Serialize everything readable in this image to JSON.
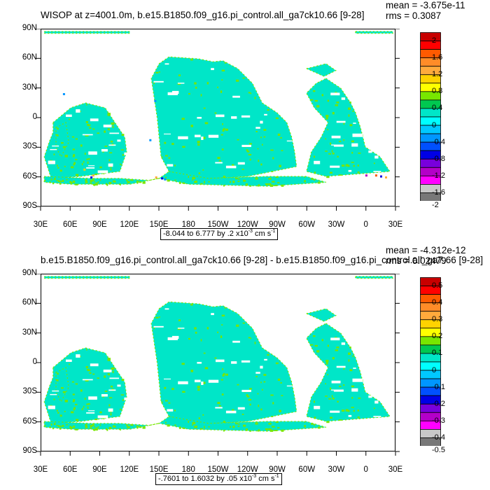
{
  "chart_data": [
    {
      "type": "heatmap",
      "title": "WISOP at z=4001.0m, b.e15.B1850.f09_g16.pi_control.all_ga7ck10.66 [9-28]",
      "stats": {
        "mean": "mean = -3.675e-11",
        "rms": "rms = 0.3087"
      },
      "x_ticks": [
        "30E",
        "60E",
        "90E",
        "120E",
        "150E",
        "180",
        "150W",
        "120W",
        "90W",
        "60W",
        "30W",
        "0",
        "30E"
      ],
      "y_ticks": [
        "90N",
        "60N",
        "30N",
        "0",
        "30S",
        "60S",
        "90S"
      ],
      "colorbar": {
        "labels": [
          "2",
          "1.6",
          "1.2",
          "0.8",
          "0.4",
          "0",
          "-0.4",
          "-0.8",
          "-1.2",
          "-1.6",
          "-2"
        ],
        "colors": [
          "#c80000",
          "#ff0000",
          "#ff5a00",
          "#ff8c28",
          "#ffaa3c",
          "#ffd200",
          "#ffff00",
          "#78e600",
          "#00c850",
          "#00e6c8",
          "#00ffff",
          "#00c8ff",
          "#0096ff",
          "#0050ff",
          "#0000e6",
          "#7800dc",
          "#b400c8",
          "#ff00ff",
          "#c8c8c8",
          "#787878"
        ]
      },
      "contour_info": {
        "text": "-8.044 to 6.777 by .2 x10",
        "exp": "-3",
        "units_pre": " cm s",
        "units_exp": "-1"
      }
    },
    {
      "type": "heatmap",
      "title": "b.e15.B1850.f09_g16.pi_control.all_ga7ck10.66 [9-28] - b.e15.B1850.f09_g16.pi_control.all_ga7.66 [9-28]",
      "stats": {
        "mean": "mean = -4.312e-12",
        "rms": "rms = 0.02479"
      },
      "x_ticks": [
        "30E",
        "60E",
        "90E",
        "120E",
        "150E",
        "180",
        "150W",
        "120W",
        "90W",
        "60W",
        "30W",
        "0",
        "30E"
      ],
      "y_ticks": [
        "90N",
        "60N",
        "30N",
        "0",
        "30S",
        "60S",
        "90S"
      ],
      "colorbar": {
        "labels": [
          "0.5",
          "0.4",
          "0.3",
          "0.2",
          "0.1",
          "0",
          "-0.1",
          "-0.2",
          "-0.3",
          "-0.4",
          "-0.5"
        ],
        "colors": [
          "#c80000",
          "#ff0000",
          "#ff5a00",
          "#ff8c28",
          "#ffaa3c",
          "#ffd200",
          "#ffff00",
          "#78e600",
          "#00c850",
          "#00e6c8",
          "#00ffff",
          "#00c8ff",
          "#0096ff",
          "#0050ff",
          "#0000e6",
          "#7800dc",
          "#b400c8",
          "#ff00ff",
          "#c8c8c8",
          "#787878"
        ]
      },
      "contour_info": {
        "text": "-.7601 to 1.6032 by .05 x10",
        "exp": "-3",
        "units_pre": " cm s",
        "units_exp": "-1"
      }
    }
  ],
  "ocean_colors": {
    "main": "#00e6c8",
    "accent": "#78e600",
    "blue": "#0096ff"
  }
}
